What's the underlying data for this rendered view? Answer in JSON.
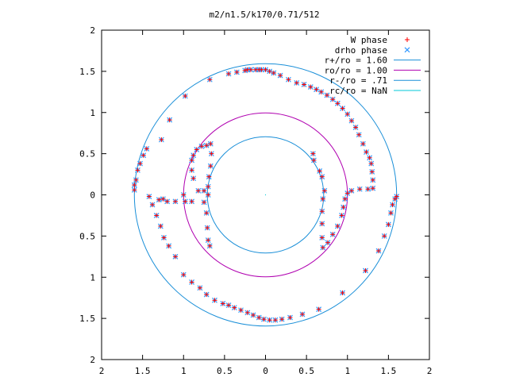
{
  "chart_data": {
    "type": "scatter",
    "title": "m2/n1.5/k170/0.71/512",
    "xlim": [
      -2,
      2
    ],
    "ylim": [
      -2,
      2
    ],
    "x_ticks": [
      {
        "value": -2,
        "label": "2"
      },
      {
        "value": -1.5,
        "label": "1.5"
      },
      {
        "value": -1,
        "label": "1"
      },
      {
        "value": -0.5,
        "label": "0.5"
      },
      {
        "value": 0,
        "label": "0"
      },
      {
        "value": 0.5,
        "label": "0.5"
      },
      {
        "value": 1,
        "label": "1"
      },
      {
        "value": 1.5,
        "label": "1.5"
      },
      {
        "value": 2,
        "label": "2"
      }
    ],
    "y_ticks": [
      {
        "value": 2,
        "label": "2"
      },
      {
        "value": 1.5,
        "label": "1.5"
      },
      {
        "value": 1,
        "label": "1"
      },
      {
        "value": 0.5,
        "label": "0.5"
      },
      {
        "value": 0,
        "label": "0"
      },
      {
        "value": -0.5,
        "label": "0.5"
      },
      {
        "value": -1,
        "label": "1"
      },
      {
        "value": -1.5,
        "label": "1.5"
      },
      {
        "value": -2,
        "label": "2"
      }
    ],
    "legend_position": "top-right",
    "legend": [
      {
        "label": "W phase",
        "marker": "plus",
        "color": "#ff0000"
      },
      {
        "label": "drho phase",
        "marker": "cross",
        "color": "#3399ff"
      },
      {
        "label": "r+/ro = 1.60",
        "marker": "line",
        "color": "#1a8fd8"
      },
      {
        "label": "ro/ro = 1.00",
        "marker": "line",
        "color": "#b000b0"
      },
      {
        "label": "r-/ro = .71",
        "marker": "line",
        "color": "#1a8fd8"
      },
      {
        "label": "rc/ro = NaN",
        "marker": "line",
        "color": "#00c8d8"
      }
    ],
    "circles": [
      {
        "name": "r+/ro = 1.60",
        "r": 1.6,
        "color": "#1a8fd8"
      },
      {
        "name": "ro/ro = 1.00",
        "r": 1.0,
        "color": "#b000b0"
      },
      {
        "name": "r-/ro = .71",
        "r": 0.71,
        "color": "#1a8fd8"
      }
    ],
    "series": [
      {
        "name": "W phase",
        "color": "#ff0000",
        "points": [
          [
            -1.27,
            0.67
          ],
          [
            -1.17,
            0.91
          ],
          [
            -0.98,
            1.2
          ],
          [
            -0.68,
            1.4
          ],
          [
            -0.45,
            1.47
          ],
          [
            -0.35,
            1.49
          ],
          [
            -0.25,
            1.51
          ],
          [
            -0.22,
            1.52
          ],
          [
            -0.18,
            1.52
          ],
          [
            -0.12,
            1.52
          ],
          [
            -0.08,
            1.52
          ],
          [
            -0.05,
            1.52
          ],
          [
            0.0,
            1.52
          ],
          [
            0.05,
            1.5
          ],
          [
            0.1,
            1.48
          ],
          [
            0.18,
            1.45
          ],
          [
            0.28,
            1.4
          ],
          [
            0.38,
            1.36
          ],
          [
            0.47,
            1.34
          ],
          [
            0.55,
            1.31
          ],
          [
            0.62,
            1.28
          ],
          [
            0.68,
            1.25
          ],
          [
            0.75,
            1.21
          ],
          [
            0.82,
            1.16
          ],
          [
            0.88,
            1.11
          ],
          [
            0.94,
            1.05
          ],
          [
            1.0,
            0.98
          ],
          [
            1.05,
            0.9
          ],
          [
            1.1,
            0.82
          ],
          [
            1.14,
            0.73
          ],
          [
            1.19,
            0.62
          ],
          [
            1.23,
            0.52
          ],
          [
            1.27,
            0.45
          ],
          [
            1.29,
            0.38
          ],
          [
            1.3,
            0.28
          ],
          [
            1.31,
            0.18
          ],
          [
            1.31,
            0.08
          ],
          [
            1.25,
            0.07
          ],
          [
            1.15,
            0.07
          ],
          [
            1.05,
            0.05
          ],
          [
            1.0,
            0.02
          ],
          [
            0.97,
            -0.05
          ],
          [
            0.95,
            -0.15
          ],
          [
            0.93,
            -0.25
          ],
          [
            0.88,
            -0.38
          ],
          [
            0.82,
            -0.48
          ],
          [
            0.76,
            -0.58
          ],
          [
            0.7,
            -0.64
          ],
          [
            0.69,
            -0.52
          ],
          [
            0.69,
            -0.35
          ],
          [
            0.69,
            -0.2
          ],
          [
            0.7,
            -0.05
          ],
          [
            0.72,
            0.05
          ],
          [
            0.69,
            0.22
          ],
          [
            0.66,
            0.29
          ],
          [
            0.59,
            0.42
          ],
          [
            0.58,
            0.5
          ],
          [
            -1.6,
            0.06
          ],
          [
            -1.6,
            0.12
          ],
          [
            -1.58,
            0.18
          ],
          [
            -1.56,
            0.3
          ],
          [
            -1.53,
            0.38
          ],
          [
            -1.49,
            0.48
          ],
          [
            -1.45,
            0.56
          ],
          [
            -1.42,
            -0.02
          ],
          [
            -1.38,
            -0.12
          ],
          [
            -1.33,
            -0.25
          ],
          [
            -1.28,
            -0.38
          ],
          [
            -1.24,
            -0.52
          ],
          [
            -1.18,
            -0.62
          ],
          [
            -1.1,
            -0.75
          ],
          [
            -1.0,
            -0.97
          ],
          [
            -0.9,
            -1.06
          ],
          [
            -0.8,
            -1.13
          ],
          [
            -0.72,
            -1.21
          ],
          [
            -0.62,
            -1.28
          ],
          [
            -0.52,
            -1.32
          ],
          [
            -0.45,
            -1.34
          ],
          [
            -0.38,
            -1.37
          ],
          [
            -0.3,
            -1.4
          ],
          [
            -0.22,
            -1.43
          ],
          [
            -0.15,
            -1.46
          ],
          [
            -0.08,
            -1.49
          ],
          [
            -0.02,
            -1.51
          ],
          [
            0.05,
            -1.52
          ],
          [
            0.12,
            -1.52
          ],
          [
            0.2,
            -1.51
          ],
          [
            0.3,
            -1.49
          ],
          [
            0.45,
            -1.45
          ],
          [
            0.65,
            -1.39
          ],
          [
            0.94,
            -1.19
          ],
          [
            1.22,
            -0.92
          ],
          [
            1.38,
            -0.68
          ],
          [
            1.45,
            -0.5
          ],
          [
            1.5,
            -0.36
          ],
          [
            1.53,
            -0.22
          ],
          [
            1.55,
            -0.12
          ],
          [
            1.58,
            -0.05
          ],
          [
            1.6,
            -0.02
          ],
          [
            -1.3,
            -0.06
          ],
          [
            -1.2,
            -0.08
          ],
          [
            -1.1,
            -0.08
          ],
          [
            -0.98,
            -0.08
          ],
          [
            -0.9,
            -0.08
          ],
          [
            -0.75,
            -0.09
          ],
          [
            -0.72,
            -0.22
          ],
          [
            -0.71,
            -0.4
          ],
          [
            -0.7,
            -0.55
          ],
          [
            -0.68,
            -0.62
          ],
          [
            -0.7,
            0.0
          ],
          [
            -0.75,
            0.05
          ],
          [
            -0.82,
            0.05
          ],
          [
            -0.88,
            0.2
          ],
          [
            -0.9,
            0.3
          ],
          [
            -0.9,
            0.42
          ],
          [
            -0.88,
            0.48
          ],
          [
            -0.84,
            0.55
          ],
          [
            -0.78,
            0.59
          ],
          [
            -0.72,
            0.6
          ],
          [
            -0.67,
            0.62
          ],
          [
            -0.66,
            0.5
          ],
          [
            -0.67,
            0.35
          ],
          [
            -0.69,
            0.22
          ],
          [
            -0.7,
            0.1
          ],
          [
            -1.0,
            0.0
          ],
          [
            -1.25,
            -0.05
          ]
        ]
      },
      {
        "name": "drho phase",
        "color": "#3399ff",
        "points": [
          [
            -1.27,
            0.67
          ],
          [
            -1.17,
            0.91
          ],
          [
            -0.98,
            1.2
          ],
          [
            -0.68,
            1.4
          ],
          [
            -0.45,
            1.47
          ],
          [
            -0.35,
            1.49
          ],
          [
            -0.25,
            1.51
          ],
          [
            -0.22,
            1.52
          ],
          [
            -0.18,
            1.52
          ],
          [
            -0.12,
            1.52
          ],
          [
            -0.08,
            1.52
          ],
          [
            -0.05,
            1.52
          ],
          [
            0.0,
            1.52
          ],
          [
            0.05,
            1.5
          ],
          [
            0.1,
            1.48
          ],
          [
            0.18,
            1.45
          ],
          [
            0.28,
            1.4
          ],
          [
            0.38,
            1.36
          ],
          [
            0.47,
            1.34
          ],
          [
            0.55,
            1.31
          ],
          [
            0.62,
            1.28
          ],
          [
            0.68,
            1.25
          ],
          [
            0.75,
            1.21
          ],
          [
            0.82,
            1.16
          ],
          [
            0.88,
            1.11
          ],
          [
            0.94,
            1.05
          ],
          [
            1.0,
            0.98
          ],
          [
            1.05,
            0.9
          ],
          [
            1.1,
            0.82
          ],
          [
            1.14,
            0.73
          ],
          [
            1.19,
            0.62
          ],
          [
            1.23,
            0.52
          ],
          [
            1.27,
            0.45
          ],
          [
            1.29,
            0.38
          ],
          [
            1.3,
            0.28
          ],
          [
            1.31,
            0.18
          ],
          [
            1.31,
            0.08
          ],
          [
            1.25,
            0.07
          ],
          [
            1.15,
            0.07
          ],
          [
            1.05,
            0.05
          ],
          [
            1.0,
            0.02
          ],
          [
            0.97,
            -0.05
          ],
          [
            0.95,
            -0.15
          ],
          [
            0.93,
            -0.25
          ],
          [
            0.88,
            -0.38
          ],
          [
            0.82,
            -0.48
          ],
          [
            0.76,
            -0.58
          ],
          [
            0.7,
            -0.64
          ],
          [
            0.69,
            -0.52
          ],
          [
            0.69,
            -0.35
          ],
          [
            0.69,
            -0.2
          ],
          [
            0.7,
            -0.05
          ],
          [
            0.72,
            0.05
          ],
          [
            0.69,
            0.22
          ],
          [
            0.66,
            0.29
          ],
          [
            0.59,
            0.42
          ],
          [
            0.58,
            0.5
          ],
          [
            -1.6,
            0.06
          ],
          [
            -1.6,
            0.12
          ],
          [
            -1.58,
            0.18
          ],
          [
            -1.56,
            0.3
          ],
          [
            -1.53,
            0.38
          ],
          [
            -1.49,
            0.48
          ],
          [
            -1.45,
            0.56
          ],
          [
            -1.42,
            -0.02
          ],
          [
            -1.38,
            -0.12
          ],
          [
            -1.33,
            -0.25
          ],
          [
            -1.28,
            -0.38
          ],
          [
            -1.24,
            -0.52
          ],
          [
            -1.18,
            -0.62
          ],
          [
            -1.1,
            -0.75
          ],
          [
            -1.0,
            -0.97
          ],
          [
            -0.9,
            -1.06
          ],
          [
            -0.8,
            -1.13
          ],
          [
            -0.72,
            -1.21
          ],
          [
            -0.62,
            -1.28
          ],
          [
            -0.52,
            -1.32
          ],
          [
            -0.45,
            -1.34
          ],
          [
            -0.38,
            -1.37
          ],
          [
            -0.3,
            -1.4
          ],
          [
            -0.22,
            -1.43
          ],
          [
            -0.15,
            -1.46
          ],
          [
            -0.08,
            -1.49
          ],
          [
            -0.02,
            -1.51
          ],
          [
            0.05,
            -1.52
          ],
          [
            0.12,
            -1.52
          ],
          [
            0.2,
            -1.51
          ],
          [
            0.3,
            -1.49
          ],
          [
            0.45,
            -1.45
          ],
          [
            0.65,
            -1.39
          ],
          [
            0.94,
            -1.19
          ],
          [
            1.22,
            -0.92
          ],
          [
            1.38,
            -0.68
          ],
          [
            1.45,
            -0.5
          ],
          [
            1.5,
            -0.36
          ],
          [
            1.53,
            -0.22
          ],
          [
            1.55,
            -0.12
          ],
          [
            1.58,
            -0.05
          ],
          [
            1.6,
            -0.02
          ],
          [
            -1.3,
            -0.06
          ],
          [
            -1.2,
            -0.08
          ],
          [
            -1.1,
            -0.08
          ],
          [
            -0.98,
            -0.08
          ],
          [
            -0.9,
            -0.08
          ],
          [
            -0.75,
            -0.09
          ],
          [
            -0.72,
            -0.22
          ],
          [
            -0.71,
            -0.4
          ],
          [
            -0.7,
            -0.55
          ],
          [
            -0.68,
            -0.62
          ],
          [
            -0.7,
            0.0
          ],
          [
            -0.75,
            0.05
          ],
          [
            -0.82,
            0.05
          ],
          [
            -0.88,
            0.2
          ],
          [
            -0.9,
            0.3
          ],
          [
            -0.9,
            0.42
          ],
          [
            -0.88,
            0.48
          ],
          [
            -0.84,
            0.55
          ],
          [
            -0.78,
            0.59
          ],
          [
            -0.72,
            0.6
          ],
          [
            -0.67,
            0.62
          ],
          [
            -0.66,
            0.5
          ],
          [
            -0.67,
            0.35
          ],
          [
            -0.69,
            0.22
          ],
          [
            -0.7,
            0.1
          ],
          [
            -1.0,
            0.0
          ],
          [
            -1.25,
            -0.05
          ]
        ]
      }
    ]
  }
}
